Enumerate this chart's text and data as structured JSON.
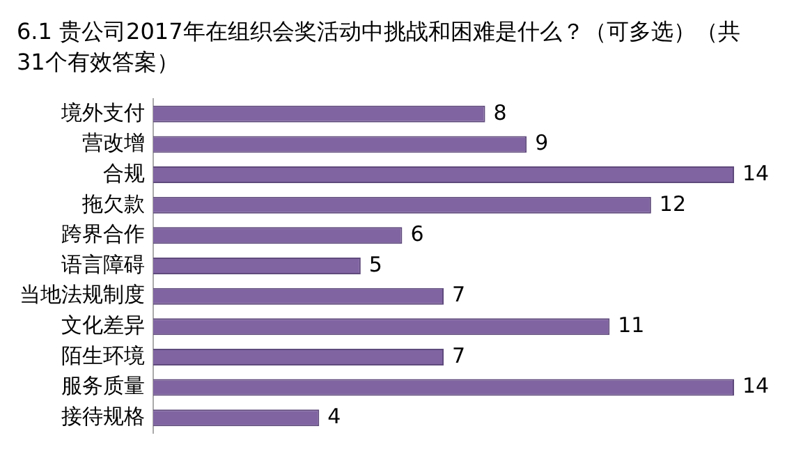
{
  "chart_data": {
    "type": "bar",
    "orientation": "horizontal",
    "title": "6.1 贵公司2017年在组织会奖活动中挑战和困难是什么？（可多选）（共31个有效答案）",
    "categories": [
      "境外支付",
      "营改增",
      "合规",
      "拖欠款",
      "跨界合作",
      "语言障碍",
      "当地法规制度",
      "文化差异",
      "陌生环境",
      "服务质量",
      "接待规格"
    ],
    "values": [
      8,
      9,
      14,
      12,
      6,
      5,
      7,
      11,
      7,
      14,
      4
    ],
    "color": "#8064a2",
    "xlim": [
      0,
      14
    ],
    "tick_labels": "y",
    "data_labels": true,
    "grid": false,
    "legend": false
  }
}
